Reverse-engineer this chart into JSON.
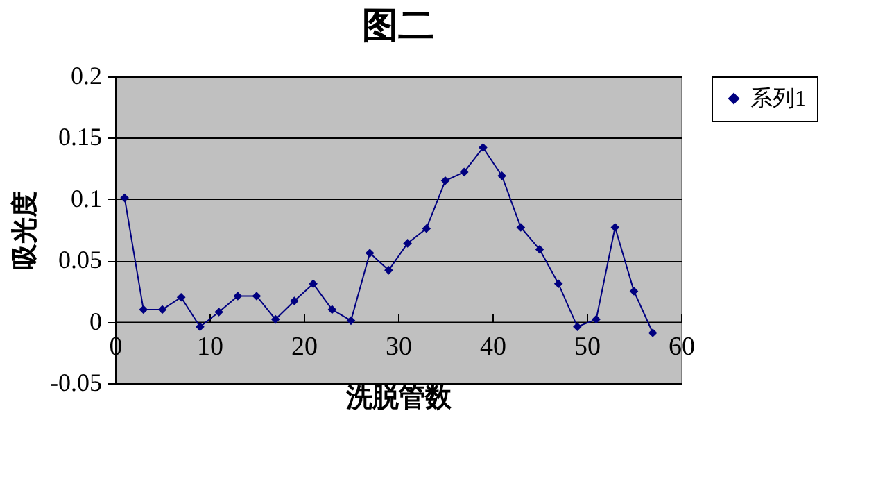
{
  "chart_data": {
    "type": "line",
    "title": "图二",
    "xlabel": "洗脱管数",
    "ylabel": "吸光度",
    "x": [
      1,
      3,
      5,
      7,
      9,
      11,
      13,
      15,
      17,
      19,
      21,
      23,
      25,
      27,
      29,
      31,
      33,
      35,
      37,
      39,
      41,
      43,
      45,
      47,
      49,
      51,
      53,
      55,
      57
    ],
    "series": [
      {
        "name": "系列1",
        "color": "#000080",
        "values": [
          0.101,
          0.01,
          0.01,
          0.02,
          -0.004,
          0.008,
          0.021,
          0.021,
          0.002,
          0.017,
          0.031,
          0.01,
          0.001,
          0.056,
          0.042,
          0.064,
          0.076,
          0.115,
          0.122,
          0.142,
          0.119,
          0.077,
          0.059,
          0.031,
          -0.004,
          0.002,
          0.077,
          0.025,
          -0.009
        ]
      }
    ],
    "xlim": [
      0,
      60
    ],
    "xticks": [
      0,
      10,
      20,
      30,
      40,
      50,
      60
    ],
    "ylim": [
      -0.05,
      0.2
    ],
    "yticks": [
      {
        "value": -0.05,
        "label": "-0.05"
      },
      {
        "value": 0,
        "label": "0"
      },
      {
        "value": 0.05,
        "label": "0.05"
      },
      {
        "value": 0.1,
        "label": "0.1"
      },
      {
        "value": 0.15,
        "label": "0.15"
      },
      {
        "value": 0.2,
        "label": "0.2"
      }
    ],
    "grid": "y",
    "legend": "right",
    "marker": "diamond",
    "line_style": "solid"
  }
}
